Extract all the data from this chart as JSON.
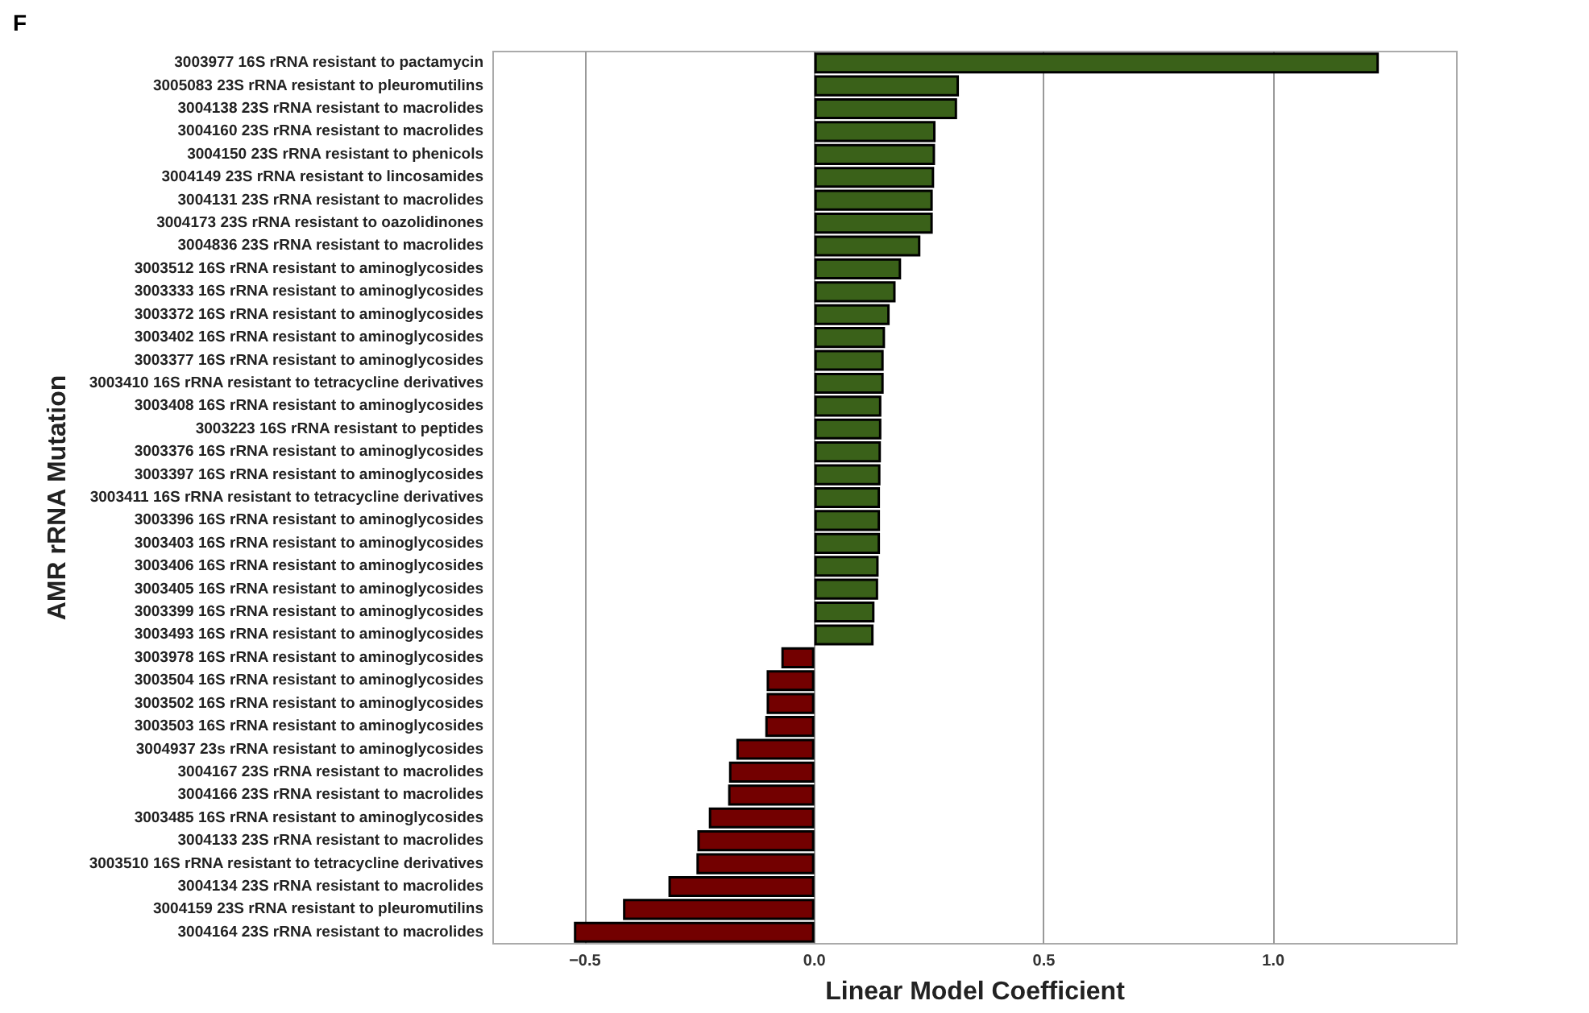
{
  "chart_data": {
    "type": "bar",
    "orientation": "horizontal",
    "xlabel": "Linear Model Coefficient",
    "ylabel": "AMR rRNA Mutation",
    "annotations": [
      "F"
    ],
    "categories": [
      "3003977 16S rRNA resistant to pactamycin",
      "3005083 23S rRNA resistant to pleuromutilins",
      "3004138 23S rRNA resistant to macrolides",
      "3004160 23S rRNA resistant to macrolides",
      "3004150 23S rRNA resistant to phenicols",
      "3004149 23S rRNA resistant to lincosamides",
      "3004131 23S rRNA resistant to macrolides",
      "3004173 23S rRNA resistant to oazolidinones",
      "3004836 23S rRNA resistant to macrolides",
      "3003512 16S rRNA resistant to aminoglycosides",
      "3003333 16S rRNA resistant to aminoglycosides",
      "3003372 16S rRNA resistant to aminoglycosides",
      "3003402 16S rRNA resistant to aminoglycosides",
      "3003377 16S rRNA resistant to aminoglycosides",
      "3003410 16S rRNA resistant to tetracycline derivatives",
      "3003408 16S rRNA resistant to aminoglycosides",
      "3003223 16S rRNA resistant to peptides",
      "3003376 16S rRNA resistant to aminoglycosides",
      "3003397 16S rRNA resistant to aminoglycosides",
      "3003411 16S rRNA resistant to tetracycline derivatives",
      "3003396 16S rRNA resistant to aminoglycosides",
      "3003403 16S rRNA resistant to aminoglycosides",
      "3003406 16S rRNA resistant to aminoglycosides",
      "3003405 16S rRNA resistant to aminoglycosides",
      "3003399 16S rRNA resistant to aminoglycosides",
      "3003493 16S rRNA resistant to aminoglycosides",
      "3003978 16S rRNA resistant to aminoglycosides",
      "3003504 16S rRNA resistant to aminoglycosides",
      "3003502 16S rRNA resistant to aminoglycosides",
      "3003503 16S rRNA resistant to aminoglycosides",
      "3004937 23s rRNA resistant to aminoglycosides",
      "3004167 23S rRNA resistant to macrolides",
      "3004166 23S rRNA resistant to macrolides",
      "3003485 16S rRNA resistant to aminoglycosides",
      "3004133 23S rRNA resistant to macrolides",
      "3003510 16S rRNA resistant to tetracycline derivatives",
      "3004134 23S rRNA resistant to macrolides",
      "3004159 23S rRNA resistant to pleuromutilins",
      "3004164 23S rRNA resistant to macrolides"
    ],
    "values": [
      1.23,
      0.315,
      0.311,
      0.264,
      0.263,
      0.261,
      0.258,
      0.258,
      0.231,
      0.189,
      0.177,
      0.164,
      0.154,
      0.151,
      0.151,
      0.146,
      0.146,
      0.145,
      0.144,
      0.143,
      0.143,
      0.143,
      0.14,
      0.139,
      0.131,
      0.129,
      -0.072,
      -0.104,
      -0.104,
      -0.107,
      -0.17,
      -0.186,
      -0.188,
      -0.23,
      -0.255,
      -0.257,
      -0.318,
      -0.417,
      -0.524
    ],
    "colors": [
      "#3a6119",
      "#3a6119",
      "#3a6119",
      "#3a6119",
      "#3a6119",
      "#3a6119",
      "#3a6119",
      "#3a6119",
      "#3a6119",
      "#3a6119",
      "#3a6119",
      "#3a6119",
      "#3a6119",
      "#3a6119",
      "#3a6119",
      "#3a6119",
      "#3a6119",
      "#3a6119",
      "#3a6119",
      "#3a6119",
      "#3a6119",
      "#3a6119",
      "#3a6119",
      "#3a6119",
      "#3a6119",
      "#3a6119",
      "#730000",
      "#730000",
      "#730000",
      "#730000",
      "#730000",
      "#730000",
      "#730000",
      "#730000",
      "#730000",
      "#730000",
      "#730000",
      "#730000",
      "#730000"
    ],
    "xlim": [
      -0.7,
      1.4
    ],
    "xticks": [
      {
        "value": -0.5,
        "label": "−0.5"
      },
      {
        "value": 0,
        "label": "0.0"
      },
      {
        "value": 0.5,
        "label": "0.5"
      },
      {
        "value": 1,
        "label": "1.0"
      }
    ],
    "grid": "x"
  }
}
